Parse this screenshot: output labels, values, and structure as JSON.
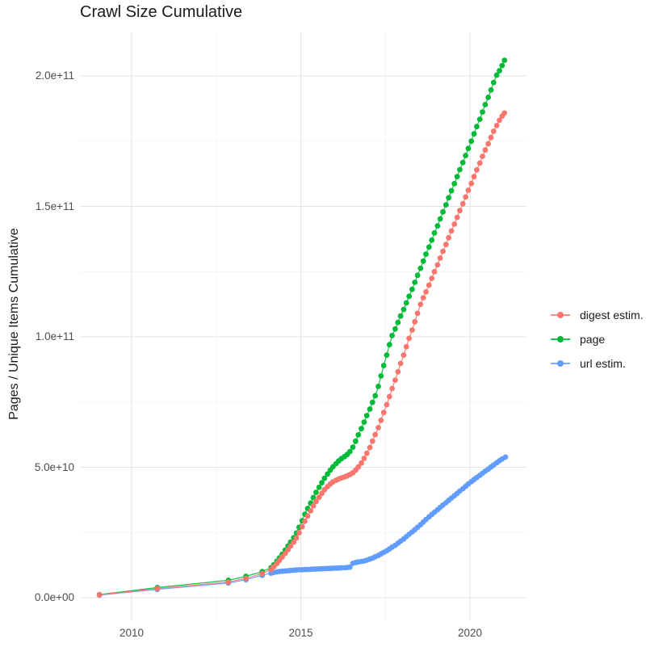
{
  "title": "Crawl Size Cumulative",
  "y_axis": {
    "label": "Pages / Unique Items Cumulative",
    "ticks": [
      {
        "label": "0.0e+00",
        "value": 0
      },
      {
        "label": "5.0e+10",
        "value": 50
      },
      {
        "label": "1.0e+11",
        "value": 100
      },
      {
        "label": "1.5e+11",
        "value": 150
      },
      {
        "label": "2.0e+11",
        "value": 200
      }
    ],
    "minor_ticks": [
      25,
      75,
      125,
      175
    ]
  },
  "x_axis": {
    "label": "",
    "ticks": [
      {
        "label": "2010",
        "value": 2010
      },
      {
        "label": "2015",
        "value": 2015
      },
      {
        "label": "2020",
        "value": 2020
      }
    ],
    "minor_ticks": [
      2012.5,
      2017.5
    ]
  },
  "legend": {
    "position": "right",
    "items": [
      {
        "key": "digest",
        "label": "digest estim.",
        "color": "#F8766D"
      },
      {
        "key": "page",
        "label": "page",
        "color": "#00BA38"
      },
      {
        "key": "url",
        "label": "url estim.",
        "color": "#619CFF"
      }
    ]
  },
  "colors": {
    "digest": "#F8766D",
    "page": "#00BA38",
    "url": "#619CFF",
    "grid_major": "#E3E3E3",
    "grid_minor": "#F1F1F1",
    "tick_text": "#4d4d4d",
    "title_text": "#1a1a1a"
  },
  "chart_data": {
    "type": "line",
    "title": "Crawl Size Cumulative",
    "xlabel": "",
    "ylabel": "Pages / Unique Items Cumulative",
    "x_unit": "year (decimal)",
    "y_unit": "items, billions (1e9); axis shows scientific notation",
    "xlim": [
      2008.45,
      2021.65
    ],
    "ylim": [
      -9,
      216
    ],
    "grid": true,
    "legend_position": "right",
    "point_style": "filled circles with connecting line, monthly points from 2014",
    "draw_order": [
      "url estim.",
      "page",
      "digest estim."
    ],
    "series": [
      {
        "name": "url estim.",
        "color": "#619CFF",
        "points": [
          [
            2009.05,
            1.0
          ],
          [
            2010.76,
            3.2
          ],
          [
            2012.86,
            5.6
          ],
          [
            2013.38,
            6.9
          ],
          [
            2013.86,
            8.6
          ],
          [
            2014.12,
            9.4
          ],
          [
            2014.2,
            9.7
          ],
          [
            2014.29,
            9.9
          ],
          [
            2014.37,
            10.05
          ],
          [
            2014.45,
            10.15
          ],
          [
            2014.54,
            10.25
          ],
          [
            2014.62,
            10.35
          ],
          [
            2014.7,
            10.45
          ],
          [
            2014.79,
            10.55
          ],
          [
            2014.87,
            10.65
          ],
          [
            2014.95,
            10.7
          ],
          [
            2015.04,
            10.75
          ],
          [
            2015.12,
            10.8
          ],
          [
            2015.2,
            10.85
          ],
          [
            2015.29,
            10.9
          ],
          [
            2015.37,
            10.95
          ],
          [
            2015.45,
            11.0
          ],
          [
            2015.54,
            11.05
          ],
          [
            2015.62,
            11.1
          ],
          [
            2015.7,
            11.15
          ],
          [
            2015.79,
            11.2
          ],
          [
            2015.87,
            11.25
          ],
          [
            2015.95,
            11.3
          ],
          [
            2016.04,
            11.35
          ],
          [
            2016.12,
            11.4
          ],
          [
            2016.2,
            11.45
          ],
          [
            2016.29,
            11.5
          ],
          [
            2016.37,
            11.6
          ],
          [
            2016.45,
            11.7
          ],
          [
            2016.54,
            13.2
          ],
          [
            2016.62,
            13.5
          ],
          [
            2016.7,
            13.7
          ],
          [
            2016.79,
            13.9
          ],
          [
            2016.87,
            14.1
          ],
          [
            2016.95,
            14.4
          ],
          [
            2017.04,
            14.8
          ],
          [
            2017.12,
            15.2
          ],
          [
            2017.2,
            15.7
          ],
          [
            2017.29,
            16.2
          ],
          [
            2017.37,
            16.8
          ],
          [
            2017.45,
            17.4
          ],
          [
            2017.54,
            18.0
          ],
          [
            2017.62,
            18.7
          ],
          [
            2017.7,
            19.4
          ],
          [
            2017.79,
            20.1
          ],
          [
            2017.87,
            20.9
          ],
          [
            2017.95,
            21.7
          ],
          [
            2018.04,
            22.5
          ],
          [
            2018.12,
            23.4
          ],
          [
            2018.2,
            24.3
          ],
          [
            2018.29,
            25.2
          ],
          [
            2018.37,
            26.1
          ],
          [
            2018.45,
            27.0
          ],
          [
            2018.54,
            28.0
          ],
          [
            2018.62,
            29.0
          ],
          [
            2018.7,
            30.0
          ],
          [
            2018.79,
            31.0
          ],
          [
            2018.87,
            31.9
          ],
          [
            2018.95,
            32.8
          ],
          [
            2019.04,
            33.7
          ],
          [
            2019.12,
            34.6
          ],
          [
            2019.2,
            35.5
          ],
          [
            2019.29,
            36.4
          ],
          [
            2019.37,
            37.3
          ],
          [
            2019.45,
            38.2
          ],
          [
            2019.54,
            39.1
          ],
          [
            2019.62,
            40.0
          ],
          [
            2019.7,
            40.9
          ],
          [
            2019.79,
            41.8
          ],
          [
            2019.87,
            42.7
          ],
          [
            2019.95,
            43.6
          ],
          [
            2020.04,
            44.5
          ],
          [
            2020.12,
            45.3
          ],
          [
            2020.2,
            46.1
          ],
          [
            2020.29,
            46.9
          ],
          [
            2020.37,
            47.7
          ],
          [
            2020.45,
            48.5
          ],
          [
            2020.54,
            49.3
          ],
          [
            2020.62,
            50.1
          ],
          [
            2020.7,
            50.9
          ],
          [
            2020.79,
            51.7
          ],
          [
            2020.87,
            52.5
          ],
          [
            2020.95,
            53.2
          ],
          [
            2021.05,
            53.9
          ]
        ]
      },
      {
        "name": "page",
        "color": "#00BA38",
        "points": [
          [
            2009.05,
            1.2
          ],
          [
            2010.76,
            3.9
          ],
          [
            2012.86,
            6.7
          ],
          [
            2013.38,
            8.2
          ],
          [
            2013.86,
            10.0
          ],
          [
            2014.12,
            11.5
          ],
          [
            2014.2,
            12.6
          ],
          [
            2014.29,
            14.0
          ],
          [
            2014.37,
            15.3
          ],
          [
            2014.45,
            16.7
          ],
          [
            2014.54,
            18.2
          ],
          [
            2014.62,
            19.8
          ],
          [
            2014.7,
            21.3
          ],
          [
            2014.79,
            23.0
          ],
          [
            2014.87,
            24.8
          ],
          [
            2014.95,
            27.0
          ],
          [
            2015.04,
            29.5
          ],
          [
            2015.12,
            32.0
          ],
          [
            2015.2,
            34.2
          ],
          [
            2015.29,
            36.3
          ],
          [
            2015.37,
            38.4
          ],
          [
            2015.45,
            40.4
          ],
          [
            2015.54,
            42.3
          ],
          [
            2015.62,
            44.1
          ],
          [
            2015.7,
            45.8
          ],
          [
            2015.79,
            47.4
          ],
          [
            2015.87,
            48.9
          ],
          [
            2015.95,
            50.2
          ],
          [
            2016.04,
            51.4
          ],
          [
            2016.12,
            52.4
          ],
          [
            2016.2,
            53.3
          ],
          [
            2016.29,
            54.1
          ],
          [
            2016.37,
            54.9
          ],
          [
            2016.45,
            56.0
          ],
          [
            2016.54,
            57.7
          ],
          [
            2016.62,
            60.0
          ],
          [
            2016.7,
            62.4
          ],
          [
            2016.79,
            64.8
          ],
          [
            2016.87,
            67.3
          ],
          [
            2016.95,
            69.8
          ],
          [
            2017.04,
            72.3
          ],
          [
            2017.12,
            74.9
          ],
          [
            2017.2,
            77.4
          ],
          [
            2017.29,
            81.0
          ],
          [
            2017.37,
            85.0
          ],
          [
            2017.45,
            89.0
          ],
          [
            2017.54,
            93.0
          ],
          [
            2017.62,
            97.0
          ],
          [
            2017.7,
            100.5
          ],
          [
            2017.79,
            103.0
          ],
          [
            2017.87,
            105.5
          ],
          [
            2017.95,
            108.0
          ],
          [
            2018.04,
            110.5
          ],
          [
            2018.12,
            113.0
          ],
          [
            2018.2,
            115.5
          ],
          [
            2018.29,
            118.2
          ],
          [
            2018.37,
            120.9
          ],
          [
            2018.45,
            123.6
          ],
          [
            2018.54,
            126.3
          ],
          [
            2018.62,
            129.0
          ],
          [
            2018.7,
            131.7
          ],
          [
            2018.79,
            134.4
          ],
          [
            2018.87,
            137.1
          ],
          [
            2018.95,
            139.8
          ],
          [
            2019.04,
            142.5
          ],
          [
            2019.12,
            145.2
          ],
          [
            2019.2,
            147.9
          ],
          [
            2019.29,
            150.6
          ],
          [
            2019.37,
            153.3
          ],
          [
            2019.45,
            156.0
          ],
          [
            2019.54,
            158.7
          ],
          [
            2019.62,
            161.4
          ],
          [
            2019.7,
            164.1
          ],
          [
            2019.79,
            166.8
          ],
          [
            2019.87,
            169.5
          ],
          [
            2019.95,
            172.2
          ],
          [
            2020.04,
            175.0
          ],
          [
            2020.12,
            177.8
          ],
          [
            2020.2,
            180.6
          ],
          [
            2020.29,
            183.4
          ],
          [
            2020.37,
            186.2
          ],
          [
            2020.45,
            189.0
          ],
          [
            2020.54,
            191.8
          ],
          [
            2020.62,
            194.6
          ],
          [
            2020.7,
            197.5
          ],
          [
            2020.79,
            200.3
          ],
          [
            2020.87,
            202.0
          ],
          [
            2020.95,
            204.0
          ],
          [
            2021.02,
            206.0
          ]
        ]
      },
      {
        "name": "digest estim.",
        "color": "#F8766D",
        "points": [
          [
            2009.05,
            1.1
          ],
          [
            2010.76,
            3.5
          ],
          [
            2012.86,
            6.0
          ],
          [
            2013.38,
            7.4
          ],
          [
            2013.86,
            9.3
          ],
          [
            2014.12,
            10.8
          ],
          [
            2014.2,
            11.9
          ],
          [
            2014.29,
            13.1
          ],
          [
            2014.37,
            14.3
          ],
          [
            2014.45,
            15.6
          ],
          [
            2014.54,
            17.0
          ],
          [
            2014.62,
            18.4
          ],
          [
            2014.7,
            19.8
          ],
          [
            2014.79,
            21.3
          ],
          [
            2014.87,
            22.9
          ],
          [
            2014.95,
            24.9
          ],
          [
            2015.04,
            27.2
          ],
          [
            2015.12,
            29.3
          ],
          [
            2015.2,
            31.3
          ],
          [
            2015.29,
            33.3
          ],
          [
            2015.37,
            35.2
          ],
          [
            2015.45,
            36.9
          ],
          [
            2015.54,
            38.5
          ],
          [
            2015.62,
            40.0
          ],
          [
            2015.7,
            41.4
          ],
          [
            2015.79,
            42.6
          ],
          [
            2015.87,
            43.6
          ],
          [
            2015.95,
            44.4
          ],
          [
            2016.04,
            45.0
          ],
          [
            2016.12,
            45.5
          ],
          [
            2016.2,
            45.9
          ],
          [
            2016.29,
            46.3
          ],
          [
            2016.37,
            46.7
          ],
          [
            2016.45,
            47.2
          ],
          [
            2016.54,
            47.9
          ],
          [
            2016.62,
            48.9
          ],
          [
            2016.7,
            50.1
          ],
          [
            2016.79,
            51.6
          ],
          [
            2016.87,
            53.4
          ],
          [
            2016.95,
            55.4
          ],
          [
            2017.04,
            57.6
          ],
          [
            2017.12,
            60.0
          ],
          [
            2017.2,
            62.5
          ],
          [
            2017.29,
            65.2
          ],
          [
            2017.37,
            68.0
          ],
          [
            2017.45,
            71.0
          ],
          [
            2017.54,
            74.0
          ],
          [
            2017.62,
            77.1
          ],
          [
            2017.7,
            80.2
          ],
          [
            2017.79,
            83.4
          ],
          [
            2017.87,
            86.6
          ],
          [
            2017.95,
            89.8
          ],
          [
            2018.04,
            93.0
          ],
          [
            2018.12,
            96.2
          ],
          [
            2018.2,
            99.4
          ],
          [
            2018.29,
            102.6
          ],
          [
            2018.37,
            105.8
          ],
          [
            2018.45,
            109.0
          ],
          [
            2018.54,
            112.4
          ],
          [
            2018.62,
            115.0
          ],
          [
            2018.7,
            117.2
          ],
          [
            2018.79,
            119.8
          ],
          [
            2018.87,
            122.4
          ],
          [
            2018.95,
            125.0
          ],
          [
            2019.04,
            127.6
          ],
          [
            2019.12,
            130.2
          ],
          [
            2019.2,
            132.8
          ],
          [
            2019.29,
            135.4
          ],
          [
            2019.37,
            138.0
          ],
          [
            2019.45,
            140.6
          ],
          [
            2019.54,
            143.2
          ],
          [
            2019.62,
            145.8
          ],
          [
            2019.7,
            148.4
          ],
          [
            2019.79,
            151.0
          ],
          [
            2019.87,
            153.6
          ],
          [
            2019.95,
            156.2
          ],
          [
            2020.04,
            158.8
          ],
          [
            2020.12,
            161.4
          ],
          [
            2020.2,
            164.0
          ],
          [
            2020.29,
            166.6
          ],
          [
            2020.37,
            169.2
          ],
          [
            2020.45,
            171.6
          ],
          [
            2020.54,
            174.0
          ],
          [
            2020.62,
            176.4
          ],
          [
            2020.7,
            178.8
          ],
          [
            2020.79,
            181.0
          ],
          [
            2020.87,
            183.0
          ],
          [
            2020.95,
            184.6
          ],
          [
            2021.02,
            185.8
          ]
        ]
      }
    ]
  }
}
